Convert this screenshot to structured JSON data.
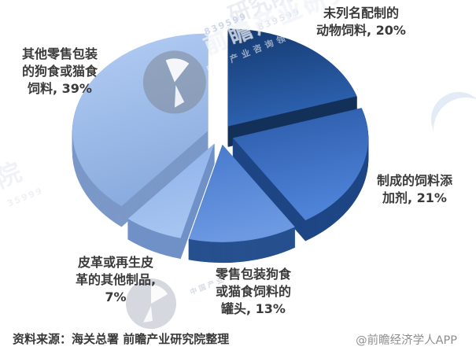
{
  "chart_data": {
    "type": "pie",
    "style": "3d-exploded",
    "start_angle_deg": 0,
    "direction": "clockwise",
    "categories": [
      "未列名配制的动物饲料",
      "制成的饲料添加剂",
      "零售包装狗食或猫食饲料的罐头",
      "皮革或再生皮革的其他制品",
      "其他零售包装的狗食或猫食饲料"
    ],
    "values": [
      20,
      21,
      13,
      7,
      39
    ],
    "unit": "%",
    "legend": "none",
    "series": [
      {
        "name": "未列名配制的动物饲料",
        "value": 20,
        "color_top": "#14396f",
        "color_bottom": "#2e63b2",
        "wall": "#143159"
      },
      {
        "name": "制成的饲料添加剂",
        "value": 21,
        "color_top": "#2a58a6",
        "color_bottom": "#4e83d8",
        "wall": "#1f4685"
      },
      {
        "name": "零售包装狗食或猫食饲料的罐头",
        "value": 13,
        "color_top": "#4678cc",
        "color_bottom": "#6c99e2",
        "wall": "#27508f"
      },
      {
        "name": "皮革或再生皮革的其他制品",
        "value": 7,
        "color_top": "#8cb0e8",
        "color_bottom": "#a6c4f1",
        "wall": "#7191c8"
      },
      {
        "name": "其他零售包装的狗食或猫食饲料",
        "value": 39,
        "color_top": "#b4cef4",
        "color_bottom": "#8bacdf",
        "wall": "#7b98c8"
      }
    ]
  },
  "labels": {
    "top_right": {
      "lines": [
        "未列名配制的",
        "动物饲料, 20%"
      ]
    },
    "right": {
      "lines": [
        "制成的饲料添",
        "加剂, 21%"
      ]
    },
    "bottom_center": {
      "lines": [
        "零售包装狗食",
        "或猫食饲料的",
        "罐头, 13%"
      ]
    },
    "bottom_left": {
      "lines": [
        "皮革或再生皮",
        "革的其他制品,",
        "7%"
      ]
    },
    "left": {
      "lines": [
        "其他零售包装",
        "的狗食或猫食",
        "饲料, 39%"
      ]
    }
  },
  "footer": {
    "source": "资料来源：海关总署 前瞻产业研究院整理",
    "credit": "@前瞻经济学人APP"
  },
  "watermark": {
    "brand": "前瞻产业研究院",
    "tagline": "中国产业咨询领导者",
    "digits_top": "839599",
    "fragment_top": "研究院",
    "fragment_left": "院",
    "digits_left": "35999",
    "tagline_fragment": "中国产业"
  }
}
